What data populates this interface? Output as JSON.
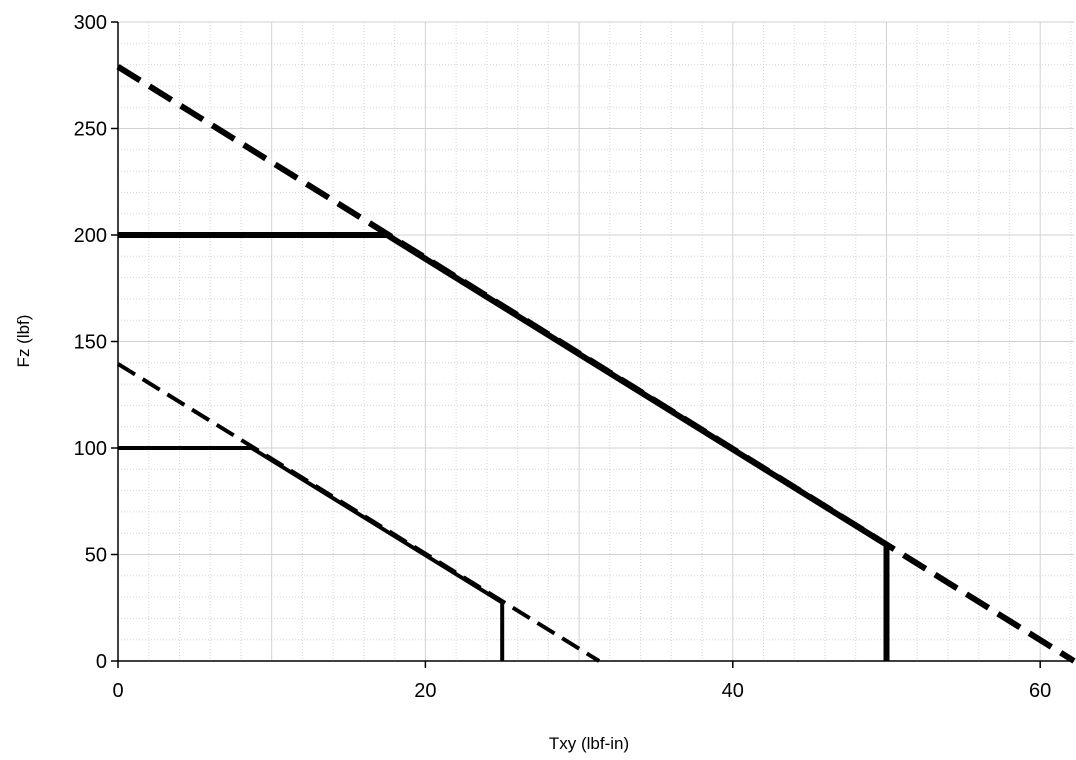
{
  "chart_data": {
    "type": "line",
    "title": "",
    "xlabel": "Txy (lbf-in)",
    "ylabel": "Fz (lbf)",
    "xlim": [
      0,
      62.2
    ],
    "ylim": [
      0,
      300
    ],
    "x_ticks": [
      0,
      20,
      40,
      60
    ],
    "x_tick_labels": [
      "0",
      "20",
      "40",
      "60"
    ],
    "y_ticks": [
      0,
      50,
      100,
      150,
      200,
      250,
      300
    ],
    "y_tick_labels": [
      "0",
      "50",
      "100",
      "150",
      "200",
      "250",
      "300"
    ],
    "grid": true,
    "legend": "none",
    "series": [
      {
        "style": "dashed",
        "width": "thick",
        "points": [
          [
            0,
            279
          ],
          [
            62.2,
            0
          ]
        ]
      },
      {
        "style": "solid",
        "width": "thick",
        "points": [
          [
            0,
            200
          ],
          [
            17.5,
            200
          ],
          [
            50,
            54.6
          ],
          [
            50,
            0
          ]
        ]
      },
      {
        "style": "dashed",
        "width": "thin",
        "points": [
          [
            0,
            139.5
          ],
          [
            31.3,
            0
          ]
        ]
      },
      {
        "style": "solid",
        "width": "thin",
        "points": [
          [
            0,
            100
          ],
          [
            8.7,
            100
          ],
          [
            25,
            27.4
          ],
          [
            25,
            0
          ]
        ]
      }
    ]
  }
}
